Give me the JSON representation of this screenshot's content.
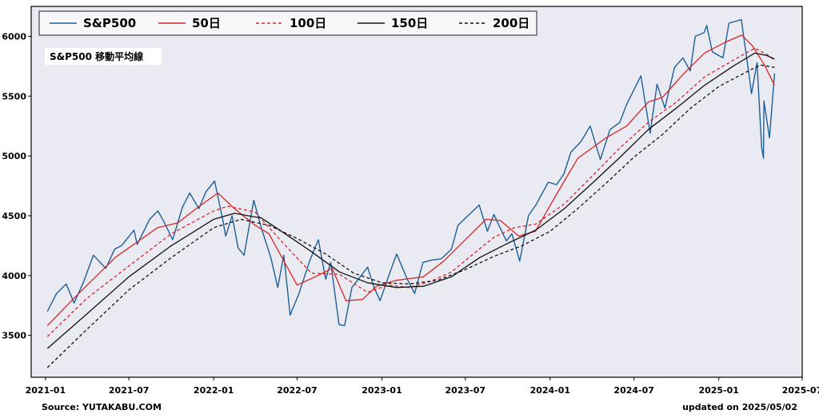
{
  "source_label": "Source: YUTAKABU.COM",
  "updated_label": "updated on 2025/05/02",
  "chart_data": {
    "type": "line",
    "title": "S&P500 移動平均線",
    "xlabel": "",
    "ylabel": "",
    "x_range": [
      "2020-12-01",
      "2025-07-01"
    ],
    "ylim": [
      3150,
      6250
    ],
    "y_ticks": [
      3500,
      4000,
      4500,
      5000,
      5500,
      6000
    ],
    "x_ticks": [
      {
        "date": "2021-01-01",
        "label": "2021-01"
      },
      {
        "date": "2021-07-01",
        "label": "2021-07"
      },
      {
        "date": "2022-01-01",
        "label": "2022-01"
      },
      {
        "date": "2022-07-01",
        "label": "2022-07"
      },
      {
        "date": "2023-01-01",
        "label": "2023-01"
      },
      {
        "date": "2023-07-01",
        "label": "2023-07"
      },
      {
        "date": "2024-01-01",
        "label": "2024-01"
      },
      {
        "date": "2024-07-01",
        "label": "2024-07"
      },
      {
        "date": "2025-01-01",
        "label": "2025-01"
      },
      {
        "date": "2025-07-01",
        "label": "2025-07"
      }
    ],
    "grid": false,
    "legend_position": "top",
    "series": [
      {
        "name": "S&P500",
        "color": "#1f5f95",
        "dash": "solid",
        "points": [
          [
            "2021-01-05",
            3700
          ],
          [
            "2021-01-25",
            3850
          ],
          [
            "2021-02-15",
            3930
          ],
          [
            "2021-03-04",
            3770
          ],
          [
            "2021-03-25",
            3950
          ],
          [
            "2021-04-15",
            4170
          ],
          [
            "2021-05-12",
            4060
          ],
          [
            "2021-05-31",
            4220
          ],
          [
            "2021-06-15",
            4250
          ],
          [
            "2021-07-12",
            4380
          ],
          [
            "2021-07-19",
            4260
          ],
          [
            "2021-08-15",
            4470
          ],
          [
            "2021-09-02",
            4540
          ],
          [
            "2021-09-15",
            4450
          ],
          [
            "2021-10-04",
            4300
          ],
          [
            "2021-10-25",
            4570
          ],
          [
            "2021-11-10",
            4690
          ],
          [
            "2021-11-30",
            4560
          ],
          [
            "2021-12-15",
            4700
          ],
          [
            "2022-01-03",
            4790
          ],
          [
            "2022-01-20",
            4480
          ],
          [
            "2022-01-27",
            4330
          ],
          [
            "2022-02-10",
            4500
          ],
          [
            "2022-02-23",
            4230
          ],
          [
            "2022-03-08",
            4170
          ],
          [
            "2022-03-29",
            4630
          ],
          [
            "2022-04-15",
            4390
          ],
          [
            "2022-05-05",
            4150
          ],
          [
            "2022-05-20",
            3900
          ],
          [
            "2022-06-02",
            4170
          ],
          [
            "2022-06-16",
            3670
          ],
          [
            "2022-07-05",
            3850
          ],
          [
            "2022-07-29",
            4130
          ],
          [
            "2022-08-16",
            4300
          ],
          [
            "2022-09-01",
            3970
          ],
          [
            "2022-09-12",
            4110
          ],
          [
            "2022-09-30",
            3590
          ],
          [
            "2022-10-12",
            3580
          ],
          [
            "2022-10-28",
            3900
          ],
          [
            "2022-11-15",
            3990
          ],
          [
            "2022-12-01",
            4070
          ],
          [
            "2022-12-15",
            3900
          ],
          [
            "2022-12-28",
            3790
          ],
          [
            "2023-01-15",
            3990
          ],
          [
            "2023-02-02",
            4180
          ],
          [
            "2023-02-25",
            3970
          ],
          [
            "2023-03-13",
            3850
          ],
          [
            "2023-03-31",
            4110
          ],
          [
            "2023-04-20",
            4130
          ],
          [
            "2023-05-10",
            4140
          ],
          [
            "2023-06-01",
            4220
          ],
          [
            "2023-06-15",
            4420
          ],
          [
            "2023-07-31",
            4590
          ],
          [
            "2023-08-18",
            4370
          ],
          [
            "2023-09-01",
            4510
          ],
          [
            "2023-09-28",
            4290
          ],
          [
            "2023-10-10",
            4350
          ],
          [
            "2023-10-27",
            4120
          ],
          [
            "2023-11-15",
            4500
          ],
          [
            "2023-12-01",
            4590
          ],
          [
            "2023-12-28",
            4780
          ],
          [
            "2024-01-15",
            4760
          ],
          [
            "2024-01-31",
            4850
          ],
          [
            "2024-02-15",
            5030
          ],
          [
            "2024-03-08",
            5120
          ],
          [
            "2024-03-28",
            5250
          ],
          [
            "2024-04-19",
            4970
          ],
          [
            "2024-05-10",
            5220
          ],
          [
            "2024-05-31",
            5280
          ],
          [
            "2024-06-15",
            5430
          ],
          [
            "2024-07-16",
            5670
          ],
          [
            "2024-08-05",
            5190
          ],
          [
            "2024-08-20",
            5600
          ],
          [
            "2024-09-06",
            5400
          ],
          [
            "2024-09-27",
            5740
          ],
          [
            "2024-10-15",
            5820
          ],
          [
            "2024-10-31",
            5710
          ],
          [
            "2024-11-11",
            6000
          ],
          [
            "2024-11-30",
            6030
          ],
          [
            "2024-12-06",
            6090
          ],
          [
            "2024-12-18",
            5870
          ],
          [
            "2025-01-10",
            5820
          ],
          [
            "2025-01-23",
            6110
          ],
          [
            "2025-02-19",
            6140
          ],
          [
            "2025-03-10",
            5610
          ],
          [
            "2025-03-13",
            5520
          ],
          [
            "2025-03-25",
            5780
          ],
          [
            "2025-04-04",
            5070
          ],
          [
            "2025-04-08",
            4980
          ],
          [
            "2025-04-09",
            5460
          ],
          [
            "2025-04-21",
            5150
          ],
          [
            "2025-05-02",
            5690
          ]
        ]
      },
      {
        "name": "50日",
        "color": "#d62728",
        "dash": "solid",
        "points": [
          [
            "2021-01-05",
            3580
          ],
          [
            "2021-03-01",
            3800
          ],
          [
            "2021-06-01",
            4150
          ],
          [
            "2021-09-01",
            4400
          ],
          [
            "2021-10-15",
            4440
          ],
          [
            "2021-12-01",
            4580
          ],
          [
            "2022-01-10",
            4690
          ],
          [
            "2022-02-15",
            4560
          ],
          [
            "2022-04-01",
            4420
          ],
          [
            "2022-05-01",
            4350
          ],
          [
            "2022-06-01",
            4130
          ],
          [
            "2022-07-01",
            3920
          ],
          [
            "2022-08-15",
            4000
          ],
          [
            "2022-09-15",
            4060
          ],
          [
            "2022-10-15",
            3790
          ],
          [
            "2022-11-20",
            3800
          ],
          [
            "2022-12-20",
            3910
          ],
          [
            "2023-02-01",
            3960
          ],
          [
            "2023-04-01",
            3990
          ],
          [
            "2023-05-15",
            4120
          ],
          [
            "2023-07-01",
            4300
          ],
          [
            "2023-08-15",
            4470
          ],
          [
            "2023-09-15",
            4460
          ],
          [
            "2023-10-25",
            4330
          ],
          [
            "2023-11-30",
            4370
          ],
          [
            "2024-01-15",
            4680
          ],
          [
            "2024-03-01",
            4980
          ],
          [
            "2024-05-01",
            5150
          ],
          [
            "2024-06-15",
            5250
          ],
          [
            "2024-08-01",
            5450
          ],
          [
            "2024-09-01",
            5490
          ],
          [
            "2024-10-15",
            5680
          ],
          [
            "2024-12-01",
            5860
          ],
          [
            "2025-01-15",
            5950
          ],
          [
            "2025-02-20",
            6010
          ],
          [
            "2025-03-15",
            5920
          ],
          [
            "2025-04-10",
            5760
          ],
          [
            "2025-05-02",
            5590
          ]
        ]
      },
      {
        "name": "100日",
        "color": "#d62728",
        "dash": "dashed",
        "points": [
          [
            "2021-01-05",
            3490
          ],
          [
            "2021-04-01",
            3810
          ],
          [
            "2021-07-01",
            4080
          ],
          [
            "2021-10-01",
            4350
          ],
          [
            "2022-01-01",
            4540
          ],
          [
            "2022-02-01",
            4580
          ],
          [
            "2022-04-01",
            4530
          ],
          [
            "2022-06-01",
            4270
          ],
          [
            "2022-08-01",
            4020
          ],
          [
            "2022-10-01",
            4010
          ],
          [
            "2022-12-01",
            3860
          ],
          [
            "2023-01-15",
            3920
          ],
          [
            "2023-03-01",
            3900
          ],
          [
            "2023-04-15",
            3950
          ],
          [
            "2023-06-01",
            4030
          ],
          [
            "2023-07-15",
            4170
          ],
          [
            "2023-09-01",
            4320
          ],
          [
            "2023-10-15",
            4400
          ],
          [
            "2023-12-01",
            4430
          ],
          [
            "2024-02-01",
            4600
          ],
          [
            "2024-04-01",
            4830
          ],
          [
            "2024-06-01",
            5070
          ],
          [
            "2024-08-01",
            5280
          ],
          [
            "2024-10-01",
            5450
          ],
          [
            "2024-12-01",
            5660
          ],
          [
            "2025-02-01",
            5800
          ],
          [
            "2025-03-20",
            5900
          ],
          [
            "2025-04-15",
            5850
          ],
          [
            "2025-05-02",
            5800
          ]
        ]
      },
      {
        "name": "150日",
        "color": "#111111",
        "dash": "solid",
        "points": [
          [
            "2021-01-05",
            3390
          ],
          [
            "2021-04-01",
            3680
          ],
          [
            "2021-07-01",
            3990
          ],
          [
            "2021-10-01",
            4250
          ],
          [
            "2022-01-01",
            4470
          ],
          [
            "2022-02-15",
            4520
          ],
          [
            "2022-04-15",
            4480
          ],
          [
            "2022-06-01",
            4360
          ],
          [
            "2022-08-01",
            4200
          ],
          [
            "2022-10-01",
            4030
          ],
          [
            "2022-12-01",
            3940
          ],
          [
            "2023-02-01",
            3900
          ],
          [
            "2023-04-01",
            3910
          ],
          [
            "2023-06-01",
            3990
          ],
          [
            "2023-08-01",
            4150
          ],
          [
            "2023-10-01",
            4270
          ],
          [
            "2023-12-01",
            4380
          ],
          [
            "2024-02-01",
            4560
          ],
          [
            "2024-04-01",
            4770
          ],
          [
            "2024-06-01",
            4990
          ],
          [
            "2024-08-01",
            5220
          ],
          [
            "2024-10-01",
            5400
          ],
          [
            "2024-12-01",
            5590
          ],
          [
            "2025-02-01",
            5750
          ],
          [
            "2025-03-20",
            5860
          ],
          [
            "2025-04-15",
            5840
          ],
          [
            "2025-05-02",
            5810
          ]
        ]
      },
      {
        "name": "200日",
        "color": "#111111",
        "dash": "dashed",
        "points": [
          [
            "2021-01-05",
            3230
          ],
          [
            "2021-04-01",
            3550
          ],
          [
            "2021-07-01",
            3880
          ],
          [
            "2021-10-01",
            4150
          ],
          [
            "2022-01-01",
            4400
          ],
          [
            "2022-03-01",
            4470
          ],
          [
            "2022-05-01",
            4420
          ],
          [
            "2022-07-01",
            4310
          ],
          [
            "2022-09-01",
            4180
          ],
          [
            "2022-11-01",
            4020
          ],
          [
            "2023-01-01",
            3940
          ],
          [
            "2023-03-01",
            3930
          ],
          [
            "2023-05-01",
            3960
          ],
          [
            "2023-07-01",
            4050
          ],
          [
            "2023-09-01",
            4160
          ],
          [
            "2023-11-01",
            4250
          ],
          [
            "2024-01-01",
            4370
          ],
          [
            "2024-03-01",
            4560
          ],
          [
            "2024-05-01",
            4770
          ],
          [
            "2024-07-01",
            4990
          ],
          [
            "2024-09-01",
            5180
          ],
          [
            "2024-11-01",
            5400
          ],
          [
            "2025-01-01",
            5580
          ],
          [
            "2025-03-01",
            5700
          ],
          [
            "2025-04-01",
            5760
          ],
          [
            "2025-05-02",
            5740
          ]
        ]
      }
    ]
  }
}
